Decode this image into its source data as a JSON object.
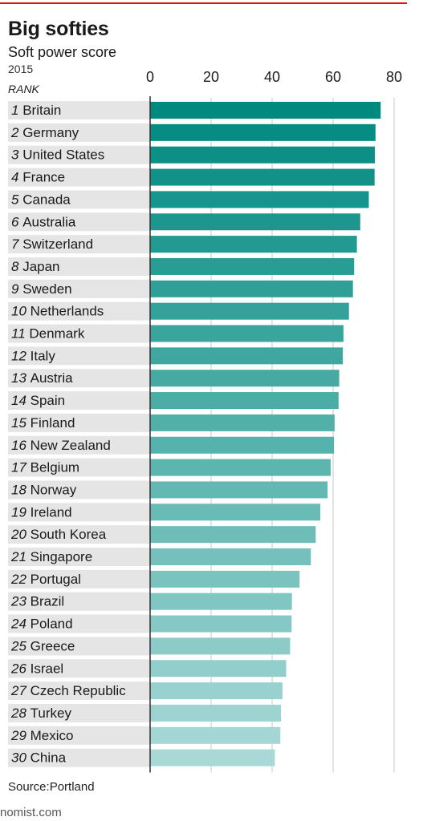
{
  "header": {
    "title": "Big softies",
    "subtitle": "Soft power score",
    "year": "2015",
    "rank_label": "RANK"
  },
  "source": "Source:Portland",
  "footer": "nomist.com",
  "colors": {
    "bar_dark": "#00897f",
    "bar_light": "#a9d9d7",
    "row_band": "#e5e5e5",
    "accent_rule": "#e3120b"
  },
  "chart_data": {
    "type": "bar",
    "orientation": "horizontal",
    "title": "Big softies",
    "subtitle": "Soft power score",
    "xlim": [
      0,
      80
    ],
    "x_ticks": [
      0,
      20,
      40,
      60,
      80
    ],
    "grid": true,
    "categories": [
      "Britain",
      "Germany",
      "United States",
      "France",
      "Canada",
      "Australia",
      "Switzerland",
      "Japan",
      "Sweden",
      "Netherlands",
      "Denmark",
      "Italy",
      "Austria",
      "Spain",
      "Finland",
      "New Zealand",
      "Belgium",
      "Norway",
      "Ireland",
      "South Korea",
      "Singapore",
      "Portugal",
      "Brazil",
      "Poland",
      "Greece",
      "Israel",
      "Czech Republic",
      "Turkey",
      "Mexico",
      "China"
    ],
    "ranks": [
      1,
      2,
      3,
      4,
      5,
      6,
      7,
      8,
      9,
      10,
      11,
      12,
      13,
      14,
      15,
      16,
      17,
      18,
      19,
      20,
      21,
      22,
      23,
      24,
      25,
      26,
      27,
      28,
      29,
      30
    ],
    "values": [
      75.6,
      73.9,
      73.7,
      73.6,
      71.7,
      68.9,
      67.8,
      66.9,
      66.5,
      65.2,
      63.4,
      63.2,
      62.0,
      61.8,
      60.5,
      60.3,
      59.2,
      58.2,
      55.8,
      54.3,
      52.7,
      49.0,
      46.5,
      46.4,
      45.9,
      44.6,
      43.4,
      42.9,
      42.7,
      40.9
    ]
  }
}
